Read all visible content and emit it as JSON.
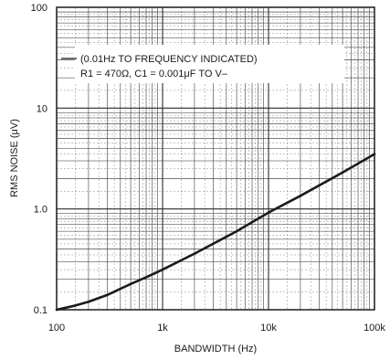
{
  "chart_data": {
    "type": "line",
    "xlabel": "BANDWIDTH (Hz)",
    "ylabel": "RMS NOISE (μV)",
    "x_scale": "log",
    "y_scale": "log",
    "xlim": [
      100,
      100000
    ],
    "ylim": [
      0.1,
      100
    ],
    "x_ticks": [
      100,
      1000,
      10000,
      100000
    ],
    "x_tick_labels": [
      "100",
      "1k",
      "10k",
      "100k"
    ],
    "y_ticks": [
      0.1,
      1.0,
      10,
      100
    ],
    "y_tick_labels": [
      "0.1",
      "1.0",
      "10",
      "100"
    ],
    "grid": true,
    "annotation": {
      "line1": "(0.01Hz TO FREQUENCY INDICATED)",
      "line2": "R1 = 470Ω, C1 = 0.001μF TO V–"
    },
    "series": [
      {
        "color": "#1a1a1a",
        "x": [
          100,
          150,
          200,
          300,
          500,
          700,
          1000,
          2000,
          5000,
          10000,
          20000,
          50000,
          100000
        ],
        "y": [
          0.1,
          0.11,
          0.12,
          0.14,
          0.18,
          0.21,
          0.25,
          0.36,
          0.6,
          0.92,
          1.35,
          2.3,
          3.5
        ]
      }
    ]
  }
}
